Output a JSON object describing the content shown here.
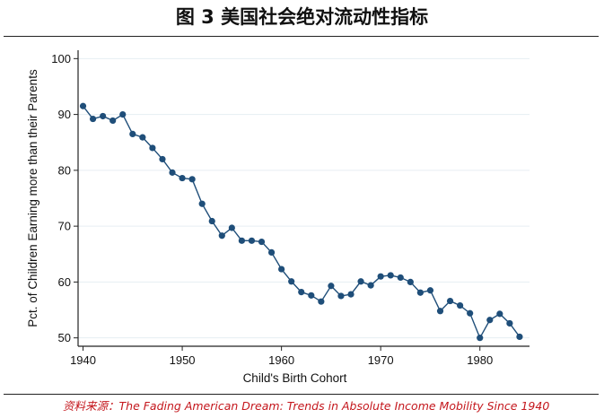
{
  "page": {
    "title": "图 3  美国社会绝对流动性指标",
    "source_label": "资料来源：",
    "source_text": "The Fading American Dream: Trends in Absolute Income Mobility Since 1940"
  },
  "colors": {
    "line": "#1f4e79",
    "marker": "#1f4e79",
    "axis": "#222222",
    "gridline": "#e6eef3",
    "source": "#c4161c"
  },
  "chart_data": {
    "type": "line",
    "title": "",
    "xlabel": "Child's Birth Cohort",
    "ylabel": "Pct. of Children Earning more than their Parents",
    "xlim": [
      1939.5,
      1985
    ],
    "ylim": [
      48.5,
      101.5
    ],
    "xticks": [
      1940,
      1950,
      1960,
      1970,
      1980
    ],
    "yticks": [
      50,
      60,
      70,
      80,
      90,
      100
    ],
    "grid": true,
    "legend": "none",
    "series": [
      {
        "x": [
          1940,
          1941,
          1942,
          1943,
          1944,
          1945,
          1946,
          1947,
          1948,
          1949,
          1950,
          1951,
          1952,
          1953,
          1954,
          1955,
          1956,
          1957,
          1958,
          1959,
          1960,
          1961,
          1962,
          1963,
          1964,
          1965,
          1966,
          1967,
          1968,
          1969,
          1970,
          1971,
          1972,
          1973,
          1974,
          1975,
          1976,
          1977,
          1978,
          1979,
          1980,
          1981,
          1982,
          1983,
          1984
        ],
        "values": [
          91.5,
          89.2,
          89.7,
          88.9,
          90.0,
          86.5,
          85.9,
          84.0,
          82.0,
          79.6,
          78.6,
          78.4,
          74.0,
          70.9,
          68.3,
          69.7,
          67.4,
          67.4,
          67.2,
          65.3,
          62.3,
          60.1,
          58.2,
          57.6,
          56.5,
          59.3,
          57.5,
          57.8,
          60.1,
          59.4,
          61.0,
          61.2,
          60.8,
          60.0,
          58.1,
          58.5,
          54.8,
          56.6,
          55.8,
          54.4,
          50.0,
          53.2,
          54.3,
          52.6,
          50.2
        ]
      }
    ]
  }
}
